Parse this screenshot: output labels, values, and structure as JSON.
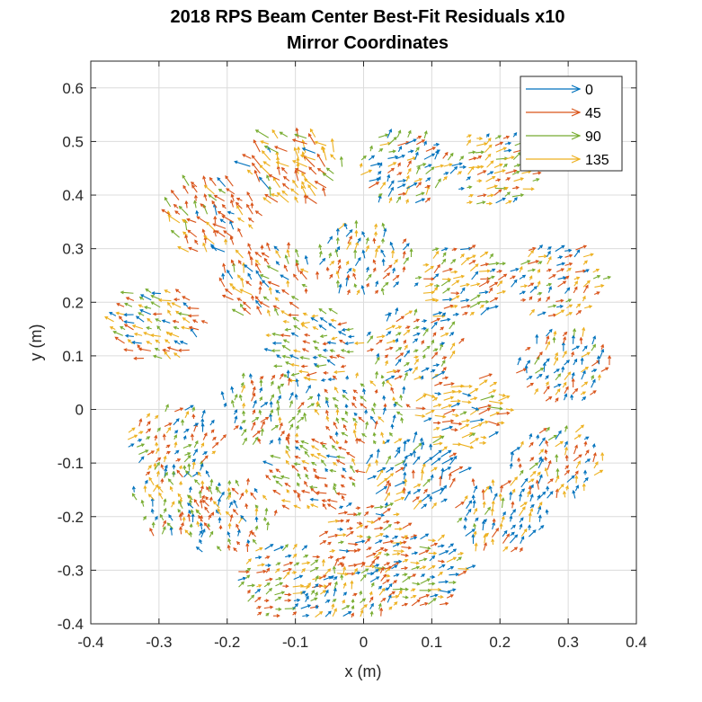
{
  "chart_data": {
    "type": "quiver",
    "title": [
      "2018 RPS Beam Center Best-Fit Residuals x10",
      "Mirror Coordinates"
    ],
    "xlabel": "x (m)",
    "ylabel": "y (m)",
    "xlim": [
      -0.4,
      0.4
    ],
    "ylim": [
      -0.4,
      0.65
    ],
    "xticks": [
      -0.4,
      -0.3,
      -0.2,
      -0.1,
      0,
      0.1,
      0.2,
      0.3,
      0.4
    ],
    "yticks": [
      -0.4,
      -0.3,
      -0.2,
      -0.1,
      0,
      0.1,
      0.2,
      0.3,
      0.4,
      0.5,
      0.6
    ],
    "xtick_labels": [
      "-0.4",
      "-0.3",
      "-0.2",
      "-0.1",
      "0",
      "0.1",
      "0.2",
      "0.3",
      "0.4"
    ],
    "ytick_labels": [
      "-0.4",
      "-0.3",
      "-0.2",
      "-0.1",
      "0",
      "0.1",
      "0.2",
      "0.3",
      "0.4",
      "0.5",
      "0.6"
    ],
    "grid": true,
    "legend_position": "top-right",
    "series": [
      {
        "name": "0",
        "color": "#0072BD"
      },
      {
        "name": "45",
        "color": "#D95319"
      },
      {
        "name": "90",
        "color": "#77AC30"
      },
      {
        "name": "135",
        "color": "#EDB120"
      }
    ],
    "segments": [
      {
        "center": [
          0.0,
          0.0
        ],
        "series_weights": [
          0.25,
          0.25,
          0.35,
          0.15
        ],
        "dir_deg": 110,
        "len": 0.011
      },
      {
        "center": [
          0.07,
          0.12
        ],
        "series_weights": [
          0.2,
          0.3,
          0.2,
          0.3
        ],
        "dir_deg": 45,
        "len": 0.012
      },
      {
        "center": [
          -0.07,
          0.12
        ],
        "series_weights": [
          0.25,
          0.2,
          0.35,
          0.2
        ],
        "dir_deg": 170,
        "len": 0.012
      },
      {
        "center": [
          0.0,
          0.28
        ],
        "series_weights": [
          0.3,
          0.35,
          0.2,
          0.15
        ],
        "dir_deg": 80,
        "len": 0.013
      },
      {
        "center": [
          0.14,
          0.0
        ],
        "series_weights": [
          0.1,
          0.2,
          0.1,
          0.6
        ],
        "dir_deg": 10,
        "len": 0.016
      },
      {
        "center": [
          -0.14,
          0.0
        ],
        "series_weights": [
          0.25,
          0.3,
          0.35,
          0.1
        ],
        "dir_deg": 70,
        "len": 0.012
      },
      {
        "center": [
          0.07,
          -0.12
        ],
        "series_weights": [
          0.55,
          0.15,
          0.1,
          0.2
        ],
        "dir_deg": 60,
        "len": 0.016
      },
      {
        "center": [
          -0.07,
          -0.12
        ],
        "series_weights": [
          0.1,
          0.45,
          0.35,
          0.1
        ],
        "dir_deg": 140,
        "len": 0.012
      },
      {
        "center": [
          0.0,
          -0.24
        ],
        "series_weights": [
          0.15,
          0.55,
          0.1,
          0.2
        ],
        "dir_deg": 20,
        "len": 0.012
      },
      {
        "center": [
          -0.14,
          0.24
        ],
        "series_weights": [
          0.15,
          0.45,
          0.2,
          0.2
        ],
        "dir_deg": 120,
        "len": 0.015
      },
      {
        "center": [
          0.14,
          0.24
        ],
        "series_weights": [
          0.2,
          0.25,
          0.15,
          0.4
        ],
        "dir_deg": 30,
        "len": 0.014
      },
      {
        "center": [
          -0.1,
          0.45
        ],
        "series_weights": [
          0.1,
          0.3,
          0.1,
          0.5
        ],
        "dir_deg": 125,
        "len": 0.02
      },
      {
        "center": [
          0.06,
          0.45
        ],
        "series_weights": [
          0.35,
          0.15,
          0.25,
          0.25
        ],
        "dir_deg": 45,
        "len": 0.014
      },
      {
        "center": [
          0.19,
          0.45
        ],
        "series_weights": [
          0.2,
          0.2,
          0.25,
          0.35
        ],
        "dir_deg": 30,
        "len": 0.013
      },
      {
        "center": [
          -0.22,
          0.36
        ],
        "series_weights": [
          0.1,
          0.55,
          0.15,
          0.2
        ],
        "dir_deg": 125,
        "len": 0.017
      },
      {
        "center": [
          0.28,
          0.24
        ],
        "series_weights": [
          0.35,
          0.25,
          0.15,
          0.25
        ],
        "dir_deg": 40,
        "len": 0.013
      },
      {
        "center": [
          -0.3,
          0.16
        ],
        "series_weights": [
          0.25,
          0.3,
          0.2,
          0.25
        ],
        "dir_deg": 150,
        "len": 0.014
      },
      {
        "center": [
          0.29,
          0.08
        ],
        "series_weights": [
          0.35,
          0.25,
          0.15,
          0.25
        ],
        "dir_deg": 60,
        "len": 0.013
      },
      {
        "center": [
          -0.28,
          -0.06
        ],
        "series_weights": [
          0.25,
          0.25,
          0.3,
          0.2
        ],
        "dir_deg": 60,
        "len": 0.012
      },
      {
        "center": [
          0.28,
          -0.1
        ],
        "series_weights": [
          0.3,
          0.35,
          0.1,
          0.25
        ],
        "dir_deg": 70,
        "len": 0.014
      },
      {
        "center": [
          -0.27,
          -0.17
        ],
        "series_weights": [
          0.2,
          0.25,
          0.35,
          0.2
        ],
        "dir_deg": 95,
        "len": 0.012
      },
      {
        "center": [
          0.2,
          -0.2
        ],
        "series_weights": [
          0.4,
          0.2,
          0.1,
          0.3
        ],
        "dir_deg": 70,
        "len": 0.015
      },
      {
        "center": [
          -0.2,
          -0.2
        ],
        "series_weights": [
          0.25,
          0.3,
          0.3,
          0.15
        ],
        "dir_deg": 100,
        "len": 0.012
      },
      {
        "center": [
          -0.12,
          -0.32
        ],
        "series_weights": [
          0.2,
          0.35,
          0.3,
          0.15
        ],
        "dir_deg": 30,
        "len": 0.012
      },
      {
        "center": [
          0.08,
          -0.3
        ],
        "series_weights": [
          0.3,
          0.25,
          0.15,
          0.3
        ],
        "dir_deg": 20,
        "len": 0.013
      },
      {
        "center": [
          -0.02,
          -0.35
        ],
        "series_weights": [
          0.2,
          0.25,
          0.3,
          0.25
        ],
        "dir_deg": 60,
        "len": 0.012
      }
    ],
    "hex_radius": 0.078
  }
}
